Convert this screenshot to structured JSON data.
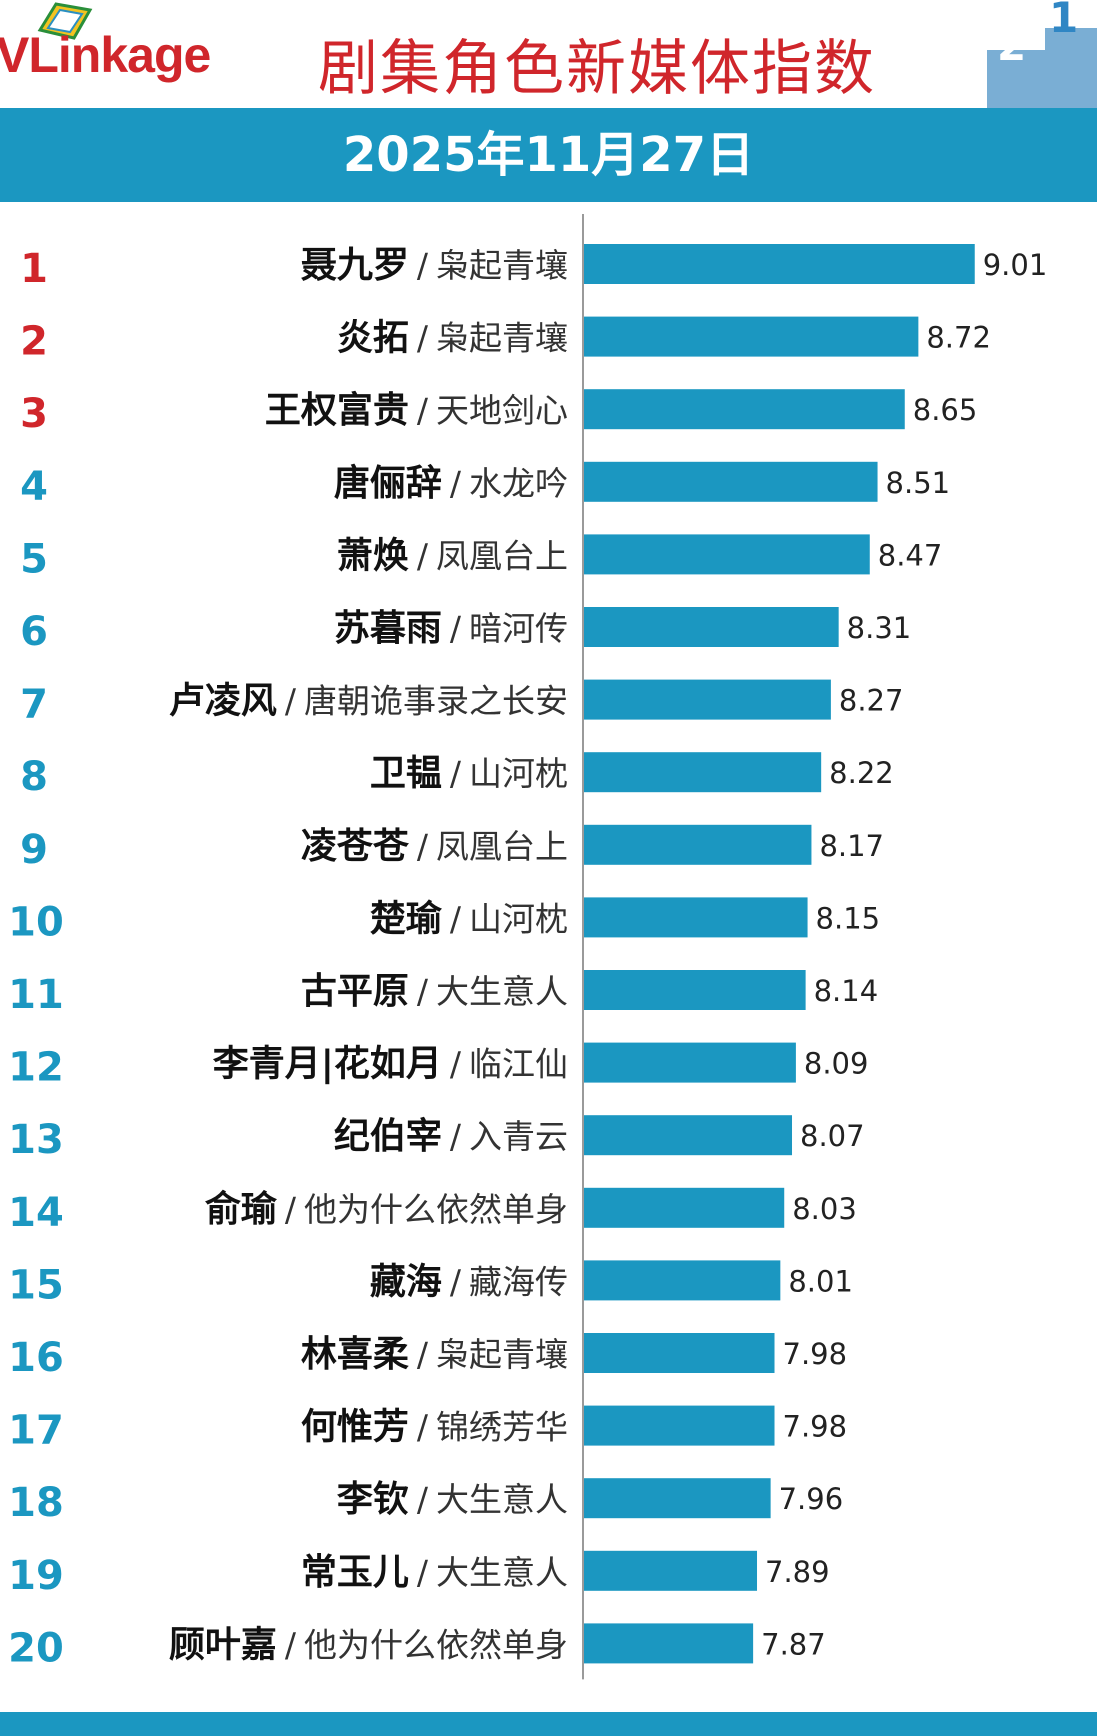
{
  "header": {
    "logo_text": "VLinkage",
    "title": "剧集角色新媒体指数",
    "podium_digits": [
      "2",
      "1"
    ]
  },
  "date": "2025年11月27日",
  "colors": {
    "brand_red": "#d0262b",
    "band_blue": "#1b97c1",
    "bar_blue": "#1b97c1",
    "rank_top3": "#d0262b",
    "rank_rest": "#1b97c1",
    "name_text": "#111111",
    "show_text": "#333333"
  },
  "chart_data": {
    "type": "bar",
    "orientation": "horizontal",
    "title": "剧集角色新媒体指数",
    "subtitle": "2025年11月27日",
    "xlim": [
      7,
      9.1
    ],
    "separator": "/",
    "rows": [
      {
        "rank": "1",
        "name": "聂九罗",
        "show": "枭起青壤",
        "value": 9.01
      },
      {
        "rank": "2",
        "name": "炎拓",
        "show": "枭起青壤",
        "value": 8.72
      },
      {
        "rank": "3",
        "name": "王权富贵",
        "show": "天地剑心",
        "value": 8.65
      },
      {
        "rank": "4",
        "name": "唐俪辞",
        "show": "水龙吟",
        "value": 8.51
      },
      {
        "rank": "5",
        "name": "萧焕",
        "show": "凤凰台上",
        "value": 8.47
      },
      {
        "rank": "6",
        "name": "苏暮雨",
        "show": "暗河传",
        "value": 8.31
      },
      {
        "rank": "7",
        "name": "卢凌风",
        "show": "唐朝诡事录之长安",
        "value": 8.27
      },
      {
        "rank": "8",
        "name": "卫韫",
        "show": "山河枕",
        "value": 8.22
      },
      {
        "rank": "9",
        "name": "凌苍苍",
        "show": "凤凰台上",
        "value": 8.17
      },
      {
        "rank": "10",
        "name": "楚瑜",
        "show": "山河枕",
        "value": 8.15
      },
      {
        "rank": "11",
        "name": "古平原",
        "show": "大生意人",
        "value": 8.14
      },
      {
        "rank": "12",
        "name": "李青月|花如月",
        "show": "临江仙",
        "value": 8.09
      },
      {
        "rank": "13",
        "name": "纪伯宰",
        "show": "入青云",
        "value": 8.07
      },
      {
        "rank": "14",
        "name": "俞瑜",
        "show": "他为什么依然单身",
        "value": 8.03
      },
      {
        "rank": "15",
        "name": "藏海",
        "show": "藏海传",
        "value": 8.01
      },
      {
        "rank": "16",
        "name": "林喜柔",
        "show": "枭起青壤",
        "value": 7.98
      },
      {
        "rank": "17",
        "name": "何惟芳",
        "show": "锦绣芳华",
        "value": 7.98
      },
      {
        "rank": "18",
        "name": "李钦",
        "show": "大生意人",
        "value": 7.96
      },
      {
        "rank": "19",
        "name": "常玉儿",
        "show": "大生意人",
        "value": 7.89
      },
      {
        "rank": "20",
        "name": "顾叶嘉",
        "show": "他为什么依然单身",
        "value": 7.87
      }
    ]
  }
}
